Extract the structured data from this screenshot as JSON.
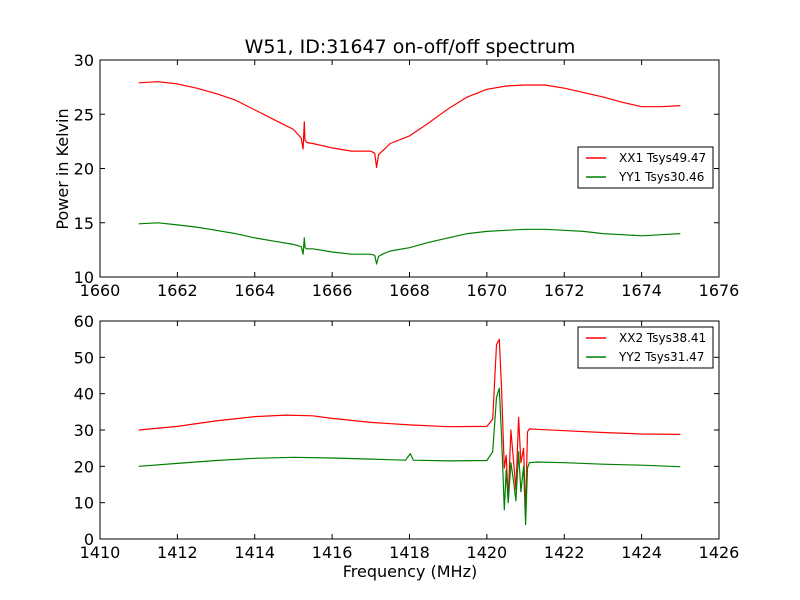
{
  "figure": {
    "title": "W51, ID:31647 on-off/off spectrum",
    "xlabel": "Frequency (MHz)",
    "ylabel": "Power in Kelvin"
  },
  "chart_data": [
    {
      "type": "line",
      "title": "W51, ID:31647 on-off/off spectrum",
      "xlabel": "",
      "ylabel": "Power in Kelvin",
      "xlim": [
        1660,
        1676
      ],
      "ylim": [
        10,
        30
      ],
      "xticks": [
        1660,
        1662,
        1664,
        1666,
        1668,
        1670,
        1672,
        1674,
        1676
      ],
      "yticks": [
        10,
        15,
        20,
        25,
        30
      ],
      "grid": false,
      "legend_position": "center-right",
      "series": [
        {
          "name": "XX1 Tsys49.47",
          "color": "#ff0000",
          "x": [
            1661.0,
            1661.5,
            1662.0,
            1662.5,
            1663.0,
            1663.5,
            1664.0,
            1664.5,
            1665.0,
            1665.2,
            1665.25,
            1665.28,
            1665.3,
            1665.35,
            1665.5,
            1666.0,
            1666.5,
            1667.0,
            1667.1,
            1667.15,
            1667.2,
            1667.3,
            1667.5,
            1668.0,
            1668.5,
            1669.0,
            1669.5,
            1670.0,
            1670.5,
            1671.0,
            1671.5,
            1672.0,
            1672.5,
            1673.0,
            1673.5,
            1674.0,
            1674.5,
            1675.0
          ],
          "y": [
            27.9,
            28.0,
            27.8,
            27.4,
            26.9,
            26.3,
            25.4,
            24.5,
            23.6,
            22.8,
            21.8,
            24.3,
            22.6,
            22.4,
            22.3,
            21.9,
            21.6,
            21.6,
            21.4,
            20.1,
            21.3,
            21.6,
            22.3,
            23.0,
            24.2,
            25.5,
            26.6,
            27.3,
            27.6,
            27.7,
            27.7,
            27.4,
            27.0,
            26.6,
            26.1,
            25.7,
            25.7,
            25.8
          ]
        },
        {
          "name": "YY1 Tsys30.46",
          "color": "#008000",
          "x": [
            1661.0,
            1661.5,
            1662.0,
            1662.5,
            1663.0,
            1663.5,
            1664.0,
            1664.5,
            1665.0,
            1665.2,
            1665.25,
            1665.28,
            1665.3,
            1665.35,
            1665.5,
            1666.0,
            1666.5,
            1667.0,
            1667.1,
            1667.15,
            1667.2,
            1667.3,
            1667.5,
            1668.0,
            1668.5,
            1669.0,
            1669.5,
            1670.0,
            1670.5,
            1671.0,
            1671.5,
            1672.0,
            1672.5,
            1673.0,
            1673.5,
            1674.0,
            1674.5,
            1675.0
          ],
          "y": [
            14.9,
            15.0,
            14.8,
            14.6,
            14.3,
            14.0,
            13.6,
            13.3,
            13.0,
            12.8,
            12.1,
            13.6,
            12.7,
            12.6,
            12.6,
            12.3,
            12.1,
            12.1,
            12.0,
            11.2,
            11.9,
            12.1,
            12.4,
            12.7,
            13.2,
            13.6,
            14.0,
            14.2,
            14.3,
            14.4,
            14.4,
            14.3,
            14.2,
            14.0,
            13.9,
            13.8,
            13.9,
            14.0
          ]
        }
      ]
    },
    {
      "type": "line",
      "title": "",
      "xlabel": "Frequency (MHz)",
      "ylabel": "",
      "xlim": [
        1410,
        1426
      ],
      "ylim": [
        0,
        60
      ],
      "xticks": [
        1410,
        1412,
        1414,
        1416,
        1418,
        1420,
        1422,
        1424,
        1426
      ],
      "yticks": [
        0,
        10,
        20,
        30,
        40,
        50,
        60
      ],
      "grid": false,
      "legend_position": "top-right",
      "series": [
        {
          "name": "XX2 Tsys38.41",
          "color": "#ff0000",
          "x": [
            1411.0,
            1412.0,
            1413.0,
            1414.0,
            1414.8,
            1415.5,
            1416.0,
            1417.0,
            1418.0,
            1419.0,
            1420.0,
            1420.15,
            1420.25,
            1420.32,
            1420.38,
            1420.45,
            1420.5,
            1420.55,
            1420.62,
            1420.7,
            1420.75,
            1420.82,
            1420.88,
            1420.95,
            1421.0,
            1421.05,
            1421.1,
            1421.3,
            1422.0,
            1423.0,
            1424.0,
            1425.0
          ],
          "y": [
            30.0,
            31.0,
            32.5,
            33.7,
            34.1,
            33.9,
            33.2,
            32.1,
            31.4,
            30.9,
            31.0,
            33.0,
            53.5,
            55.0,
            41.0,
            19.5,
            23.0,
            11.0,
            30.0,
            20.0,
            13.5,
            33.5,
            21.0,
            25.0,
            7.0,
            29.5,
            30.3,
            30.2,
            29.8,
            29.3,
            28.9,
            28.8
          ]
        },
        {
          "name": "YY2 Tsys31.47",
          "color": "#008000",
          "x": [
            1411.0,
            1412.0,
            1413.0,
            1414.0,
            1415.0,
            1416.0,
            1417.0,
            1417.9,
            1418.02,
            1418.1,
            1419.0,
            1420.0,
            1420.15,
            1420.25,
            1420.32,
            1420.38,
            1420.45,
            1420.5,
            1420.55,
            1420.62,
            1420.7,
            1420.75,
            1420.82,
            1420.88,
            1420.95,
            1421.0,
            1421.05,
            1421.1,
            1421.3,
            1422.0,
            1423.0,
            1424.0,
            1425.0
          ],
          "y": [
            20.0,
            20.8,
            21.6,
            22.2,
            22.5,
            22.3,
            22.0,
            21.7,
            23.5,
            21.7,
            21.5,
            21.6,
            24.0,
            39.0,
            41.5,
            28.0,
            8.0,
            19.0,
            10.0,
            21.0,
            15.0,
            10.5,
            24.0,
            13.0,
            20.0,
            4.0,
            19.5,
            21.0,
            21.2,
            21.0,
            20.6,
            20.3,
            19.9
          ]
        }
      ]
    }
  ]
}
